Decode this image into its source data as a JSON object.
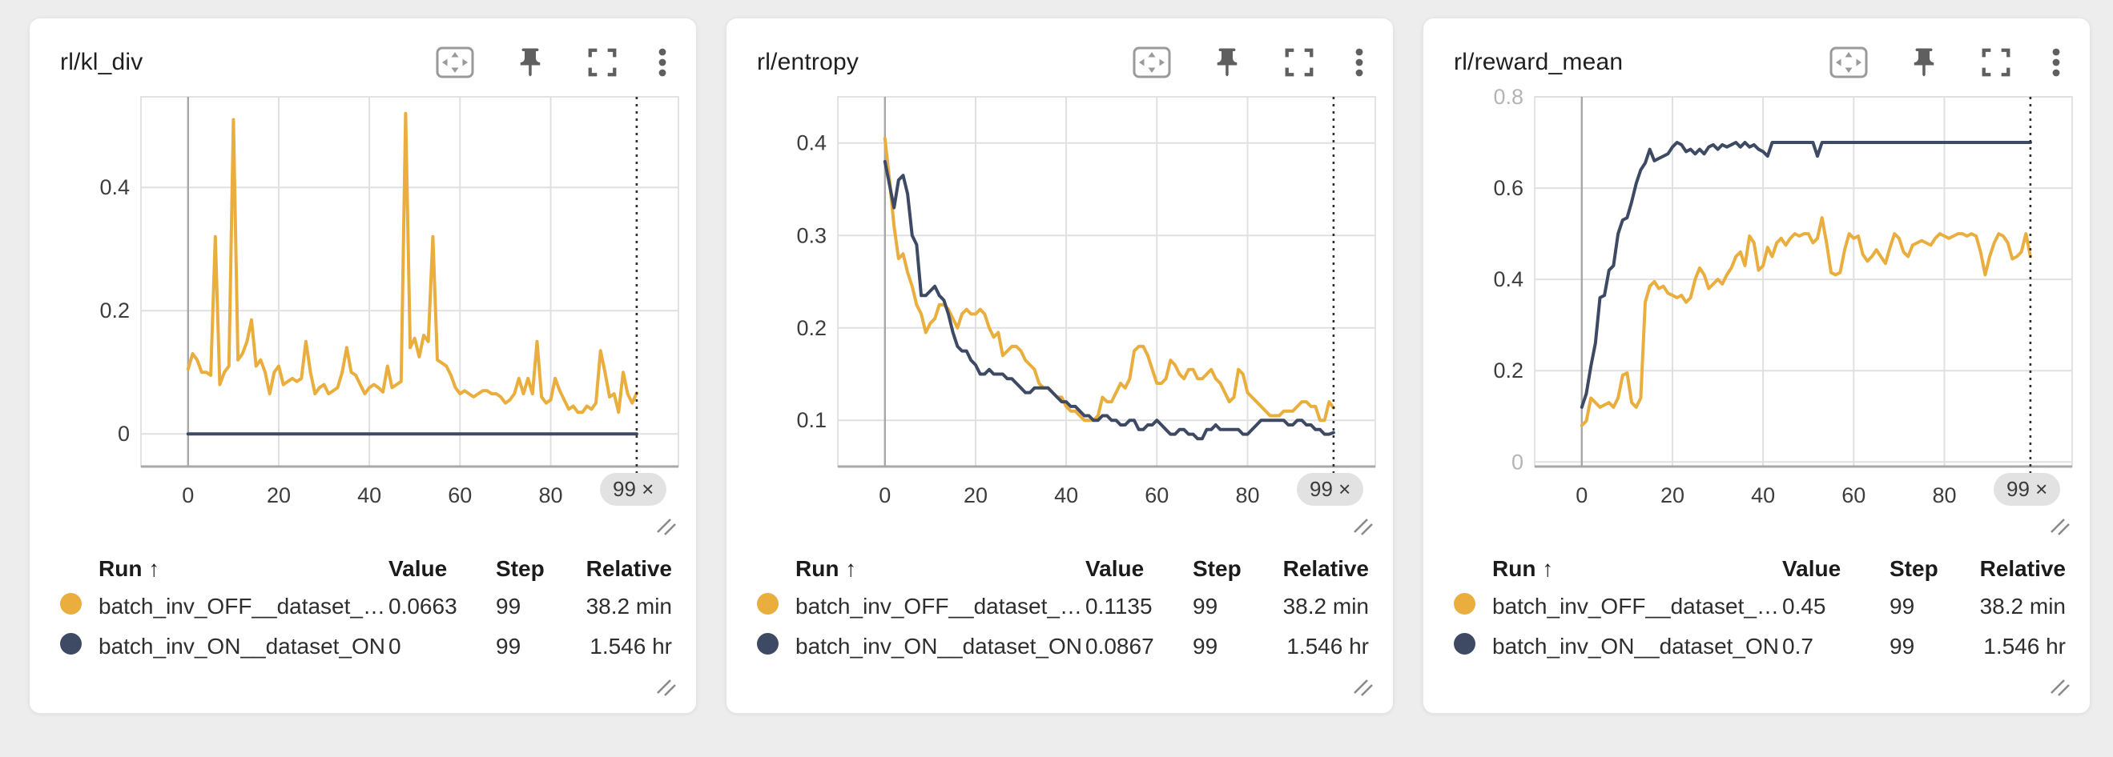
{
  "page": {
    "background": "#ededed",
    "panel_background": "#ffffff"
  },
  "colors": {
    "run_off": "#E9AE3D",
    "run_on": "#3E4A63",
    "grid": "#e0e0e0",
    "axis": "#a8a8a8",
    "marker": "#2e2e2e",
    "badge_bg": "#e2e2e2",
    "icon": "#6b6b6b"
  },
  "chrome": {
    "toolbar_icons": [
      "pan-zoom-icon",
      "pin-icon",
      "fullscreen-icon",
      "kebab-menu-icon"
    ]
  },
  "panels": [
    {
      "title": "rl/kl_div",
      "step_badge": "99 ×",
      "legend": {
        "headers": {
          "run": "Run ↑",
          "value": "Value",
          "step": "Step",
          "relative": "Relative"
        },
        "rows": [
          {
            "run": "batch_inv_OFF__dataset_ON",
            "value": "0.0663",
            "step": "99",
            "relative": "38.2 min",
            "color": "#E9AE3D"
          },
          {
            "run": "batch_inv_ON__dataset_ON",
            "value": "0",
            "step": "99",
            "relative": "1.546 hr",
            "color": "#3E4A63"
          }
        ]
      }
    },
    {
      "title": "rl/entropy",
      "step_badge": "99 ×",
      "legend": {
        "headers": {
          "run": "Run ↑",
          "value": "Value",
          "step": "Step",
          "relative": "Relative"
        },
        "rows": [
          {
            "run": "batch_inv_OFF__dataset_ON",
            "value": "0.1135",
            "step": "99",
            "relative": "38.2 min",
            "color": "#E9AE3D"
          },
          {
            "run": "batch_inv_ON__dataset_ON",
            "value": "0.0867",
            "step": "99",
            "relative": "1.546 hr",
            "color": "#3E4A63"
          }
        ]
      }
    },
    {
      "title": "rl/reward_mean",
      "step_badge": "99 ×",
      "legend": {
        "headers": {
          "run": "Run ↑",
          "value": "Value",
          "step": "Step",
          "relative": "Relative"
        },
        "rows": [
          {
            "run": "batch_inv_OFF__dataset_ON",
            "value": "0.45",
            "step": "99",
            "relative": "38.2 min",
            "color": "#E9AE3D"
          },
          {
            "run": "batch_inv_ON__dataset_ON",
            "value": "0.7",
            "step": "99",
            "relative": "1.546 hr",
            "color": "#3E4A63"
          }
        ]
      }
    }
  ],
  "chart_data": [
    {
      "type": "line",
      "title": "rl/kl_div",
      "xlabel": "",
      "ylabel": "",
      "x": "step index 0..99",
      "xlim": [
        -10.4,
        108.2
      ],
      "ylim": [
        -0.053,
        0.547
      ],
      "x_ticks": [
        0,
        20,
        40,
        60,
        80
      ],
      "y_ticks": [
        0,
        0.2,
        0.4
      ],
      "y_ticks_faint": [],
      "x_marker": 99,
      "grid": true,
      "legend_position": "table-below",
      "series": [
        {
          "name": "batch_inv_OFF__dataset_ON",
          "color": "#E9AE3D",
          "values": [
            0.105,
            0.13,
            0.12,
            0.1,
            0.1,
            0.095,
            0.32,
            0.08,
            0.1,
            0.11,
            0.51,
            0.12,
            0.13,
            0.15,
            0.185,
            0.11,
            0.12,
            0.1,
            0.065,
            0.1,
            0.11,
            0.08,
            0.085,
            0.09,
            0.085,
            0.09,
            0.15,
            0.1,
            0.065,
            0.075,
            0.08,
            0.065,
            0.07,
            0.075,
            0.1,
            0.14,
            0.1,
            0.095,
            0.08,
            0.065,
            0.075,
            0.08,
            0.075,
            0.068,
            0.11,
            0.075,
            0.08,
            0.085,
            0.52,
            0.14,
            0.155,
            0.125,
            0.16,
            0.15,
            0.32,
            0.12,
            0.115,
            0.11,
            0.095,
            0.075,
            0.065,
            0.07,
            0.065,
            0.06,
            0.065,
            0.07,
            0.07,
            0.065,
            0.065,
            0.06,
            0.05,
            0.055,
            0.065,
            0.09,
            0.065,
            0.09,
            0.065,
            0.15,
            0.06,
            0.05,
            0.055,
            0.09,
            0.07,
            0.055,
            0.04,
            0.045,
            0.035,
            0.035,
            0.045,
            0.04,
            0.05,
            0.135,
            0.1,
            0.06,
            0.065,
            0.035,
            0.1,
            0.065,
            0.05,
            0.0663
          ]
        },
        {
          "name": "batch_inv_ON__dataset_ON",
          "color": "#3E4A63",
          "values": [
            0,
            0,
            0,
            0,
            0,
            0,
            0,
            0,
            0,
            0,
            0,
            0,
            0,
            0,
            0,
            0,
            0,
            0,
            0,
            0,
            0,
            0,
            0,
            0,
            0,
            0,
            0,
            0,
            0,
            0,
            0,
            0,
            0,
            0,
            0,
            0,
            0,
            0,
            0,
            0,
            0,
            0,
            0,
            0,
            0,
            0,
            0,
            0,
            0,
            0,
            0,
            0,
            0,
            0,
            0,
            0,
            0,
            0,
            0,
            0,
            0,
            0,
            0,
            0,
            0,
            0,
            0,
            0,
            0,
            0,
            0,
            0,
            0,
            0,
            0,
            0,
            0,
            0,
            0,
            0,
            0,
            0,
            0,
            0,
            0,
            0,
            0,
            0,
            0,
            0,
            0,
            0,
            0,
            0,
            0,
            0,
            0,
            0,
            0,
            0
          ]
        }
      ]
    },
    {
      "type": "line",
      "title": "rl/entropy",
      "xlabel": "",
      "ylabel": "",
      "x": "step index 0..99",
      "xlim": [
        -10.4,
        108.2
      ],
      "ylim": [
        0.05,
        0.45
      ],
      "x_ticks": [
        0,
        20,
        40,
        60,
        80
      ],
      "y_ticks": [
        0.1,
        0.2,
        0.3,
        0.4
      ],
      "y_ticks_faint": [],
      "x_marker": 99,
      "grid": true,
      "legend_position": "table-below",
      "series": [
        {
          "name": "batch_inv_OFF__dataset_ON",
          "color": "#E9AE3D",
          "values": [
            0.405,
            0.36,
            0.31,
            0.275,
            0.28,
            0.26,
            0.245,
            0.225,
            0.215,
            0.195,
            0.205,
            0.21,
            0.225,
            0.225,
            0.22,
            0.21,
            0.2,
            0.215,
            0.22,
            0.215,
            0.215,
            0.22,
            0.215,
            0.2,
            0.19,
            0.195,
            0.17,
            0.175,
            0.18,
            0.18,
            0.175,
            0.165,
            0.16,
            0.155,
            0.14,
            0.135,
            0.135,
            0.13,
            0.125,
            0.125,
            0.115,
            0.11,
            0.11,
            0.105,
            0.1,
            0.1,
            0.1,
            0.105,
            0.125,
            0.12,
            0.12,
            0.13,
            0.14,
            0.135,
            0.145,
            0.175,
            0.18,
            0.18,
            0.17,
            0.155,
            0.14,
            0.14,
            0.145,
            0.165,
            0.16,
            0.15,
            0.145,
            0.155,
            0.155,
            0.145,
            0.145,
            0.15,
            0.155,
            0.145,
            0.14,
            0.13,
            0.12,
            0.125,
            0.155,
            0.15,
            0.13,
            0.125,
            0.12,
            0.115,
            0.11,
            0.105,
            0.105,
            0.105,
            0.11,
            0.11,
            0.11,
            0.115,
            0.12,
            0.12,
            0.115,
            0.115,
            0.1,
            0.1,
            0.12,
            0.1135
          ]
        },
        {
          "name": "batch_inv_ON__dataset_ON",
          "color": "#3E4A63",
          "values": [
            0.38,
            0.355,
            0.33,
            0.36,
            0.365,
            0.345,
            0.3,
            0.29,
            0.235,
            0.235,
            0.24,
            0.245,
            0.235,
            0.23,
            0.215,
            0.195,
            0.18,
            0.175,
            0.175,
            0.165,
            0.16,
            0.15,
            0.15,
            0.155,
            0.15,
            0.15,
            0.15,
            0.145,
            0.145,
            0.14,
            0.135,
            0.13,
            0.13,
            0.135,
            0.135,
            0.135,
            0.135,
            0.13,
            0.125,
            0.12,
            0.12,
            0.115,
            0.115,
            0.11,
            0.105,
            0.105,
            0.1,
            0.1,
            0.105,
            0.105,
            0.1,
            0.1,
            0.095,
            0.095,
            0.1,
            0.1,
            0.09,
            0.09,
            0.095,
            0.095,
            0.1,
            0.095,
            0.09,
            0.085,
            0.085,
            0.09,
            0.09,
            0.085,
            0.085,
            0.08,
            0.08,
            0.09,
            0.09,
            0.095,
            0.09,
            0.09,
            0.09,
            0.09,
            0.09,
            0.085,
            0.085,
            0.09,
            0.095,
            0.1,
            0.1,
            0.1,
            0.1,
            0.1,
            0.1,
            0.095,
            0.095,
            0.1,
            0.1,
            0.095,
            0.095,
            0.09,
            0.09,
            0.085,
            0.085,
            0.0867
          ]
        }
      ]
    },
    {
      "type": "line",
      "title": "rl/reward_mean",
      "xlabel": "",
      "ylabel": "",
      "x": "step index 0..99",
      "xlim": [
        -10.4,
        108.2
      ],
      "ylim": [
        -0.01,
        0.8
      ],
      "x_ticks": [
        0,
        20,
        40,
        60,
        80
      ],
      "y_ticks": [
        0.2,
        0.4,
        0.6
      ],
      "y_ticks_faint": [
        0,
        0.8
      ],
      "x_marker": 99,
      "grid": true,
      "legend_position": "table-below",
      "series": [
        {
          "name": "batch_inv_OFF__dataset_ON",
          "color": "#E9AE3D",
          "values": [
            0.08,
            0.09,
            0.14,
            0.13,
            0.12,
            0.125,
            0.13,
            0.12,
            0.14,
            0.19,
            0.195,
            0.13,
            0.12,
            0.14,
            0.35,
            0.385,
            0.395,
            0.38,
            0.385,
            0.37,
            0.365,
            0.36,
            0.365,
            0.35,
            0.36,
            0.4,
            0.425,
            0.41,
            0.38,
            0.39,
            0.4,
            0.39,
            0.41,
            0.425,
            0.45,
            0.46,
            0.43,
            0.495,
            0.48,
            0.42,
            0.43,
            0.47,
            0.45,
            0.48,
            0.49,
            0.475,
            0.49,
            0.5,
            0.495,
            0.5,
            0.5,
            0.48,
            0.49,
            0.535,
            0.48,
            0.415,
            0.41,
            0.415,
            0.465,
            0.5,
            0.49,
            0.495,
            0.455,
            0.44,
            0.45,
            0.465,
            0.45,
            0.435,
            0.47,
            0.5,
            0.49,
            0.46,
            0.45,
            0.475,
            0.48,
            0.485,
            0.48,
            0.475,
            0.49,
            0.5,
            0.495,
            0.49,
            0.495,
            0.5,
            0.5,
            0.495,
            0.5,
            0.495,
            0.46,
            0.41,
            0.45,
            0.48,
            0.5,
            0.495,
            0.48,
            0.445,
            0.45,
            0.46,
            0.5,
            0.45
          ]
        },
        {
          "name": "batch_inv_ON__dataset_ON",
          "color": "#3E4A63",
          "values": [
            0.12,
            0.15,
            0.21,
            0.26,
            0.36,
            0.365,
            0.42,
            0.43,
            0.5,
            0.53,
            0.535,
            0.57,
            0.61,
            0.64,
            0.655,
            0.685,
            0.66,
            0.665,
            0.67,
            0.675,
            0.69,
            0.7,
            0.695,
            0.68,
            0.685,
            0.675,
            0.685,
            0.675,
            0.69,
            0.695,
            0.685,
            0.695,
            0.69,
            0.695,
            0.7,
            0.69,
            0.7,
            0.69,
            0.695,
            0.685,
            0.68,
            0.67,
            0.7,
            0.7,
            0.7,
            0.7,
            0.7,
            0.7,
            0.7,
            0.7,
            0.7,
            0.7,
            0.67,
            0.7,
            0.7,
            0.7,
            0.7,
            0.7,
            0.7,
            0.7,
            0.7,
            0.7,
            0.7,
            0.7,
            0.7,
            0.7,
            0.7,
            0.7,
            0.7,
            0.7,
            0.7,
            0.7,
            0.7,
            0.7,
            0.7,
            0.7,
            0.7,
            0.7,
            0.7,
            0.7,
            0.7,
            0.7,
            0.7,
            0.7,
            0.7,
            0.7,
            0.7,
            0.7,
            0.7,
            0.7,
            0.7,
            0.7,
            0.7,
            0.7,
            0.7,
            0.7,
            0.7,
            0.7,
            0.7,
            0.7
          ]
        }
      ]
    }
  ]
}
